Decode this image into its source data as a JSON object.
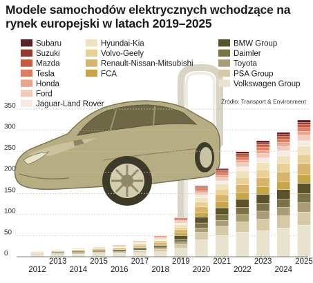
{
  "chart_data": {
    "type": "bar",
    "stacked": true,
    "title": "Modele samochodów elektrycznych wchodzące na rynek europejski w latach 2019–2025",
    "source": "Źródło: Transport & Environment",
    "categories": [
      "2012",
      "2013",
      "2014",
      "2015",
      "2016",
      "2017",
      "2018",
      "2019",
      "2020",
      "2021",
      "2022",
      "2023",
      "2024",
      "2025"
    ],
    "ylim": [
      0,
      350
    ],
    "yticks": [
      0,
      50,
      100,
      150,
      200,
      250,
      300,
      350
    ],
    "grid": true,
    "legend_position": "top",
    "series": [
      {
        "name": "Volkswagen Group",
        "color": "#e9e2cf",
        "values": [
          4,
          5,
          6,
          7,
          8,
          10,
          12,
          20,
          40,
          50,
          58,
          62,
          68,
          75
        ]
      },
      {
        "name": "PSA Group",
        "color": "#d6c9a6",
        "values": [
          2,
          3,
          3,
          4,
          4,
          5,
          6,
          10,
          18,
          22,
          25,
          27,
          29,
          31
        ]
      },
      {
        "name": "Toyota",
        "color": "#a99c76",
        "values": [
          0,
          0,
          0,
          0,
          0,
          1,
          2,
          5,
          10,
          14,
          17,
          19,
          20,
          22
        ]
      },
      {
        "name": "Daimler",
        "color": "#7b7346",
        "values": [
          1,
          1,
          2,
          2,
          2,
          3,
          3,
          7,
          12,
          14,
          17,
          19,
          20,
          22
        ]
      },
      {
        "name": "BMW Group",
        "color": "#5a5228",
        "values": [
          1,
          2,
          2,
          2,
          3,
          3,
          4,
          8,
          14,
          16,
          19,
          21,
          22,
          24
        ]
      },
      {
        "name": "FCA",
        "color": "#c8a545",
        "values": [
          0,
          0,
          0,
          0,
          0,
          1,
          2,
          6,
          10,
          14,
          16,
          18,
          19,
          21
        ]
      },
      {
        "name": "Renault-Nissan-Mitsubishi",
        "color": "#d8b46a",
        "values": [
          2,
          2,
          3,
          3,
          3,
          4,
          5,
          8,
          14,
          16,
          19,
          21,
          23,
          25
        ]
      },
      {
        "name": "Volvo-Geely",
        "color": "#e7cf96",
        "values": [
          1,
          1,
          1,
          2,
          2,
          3,
          4,
          6,
          12,
          14,
          17,
          19,
          20,
          22
        ]
      },
      {
        "name": "Hyundai-Kia",
        "color": "#f0e2bd",
        "values": [
          0,
          0,
          1,
          1,
          1,
          2,
          3,
          6,
          10,
          12,
          15,
          17,
          18,
          20
        ]
      },
      {
        "name": "Jaguar-Land Rover",
        "color": "#f6ebe3",
        "values": [
          0,
          0,
          0,
          0,
          1,
          1,
          2,
          4,
          6,
          8,
          10,
          11,
          12,
          13
        ]
      },
      {
        "name": "Ford",
        "color": "#f2cbbb",
        "values": [
          0,
          0,
          0,
          1,
          1,
          1,
          2,
          4,
          6,
          8,
          10,
          11,
          12,
          13
        ]
      },
      {
        "name": "Honda",
        "color": "#eca48c",
        "values": [
          0,
          0,
          0,
          0,
          0,
          0,
          1,
          2,
          4,
          5,
          6,
          7,
          8,
          9
        ]
      },
      {
        "name": "Tesla",
        "color": "#e07c5f",
        "values": [
          1,
          1,
          1,
          1,
          2,
          2,
          3,
          4,
          5,
          6,
          7,
          8,
          8,
          9
        ]
      },
      {
        "name": "Mazda",
        "color": "#c75a3c",
        "values": [
          0,
          0,
          0,
          0,
          0,
          0,
          0,
          2,
          3,
          4,
          5,
          6,
          6,
          7
        ]
      },
      {
        "name": "Suzuki",
        "color": "#93392e",
        "values": [
          0,
          0,
          0,
          0,
          0,
          0,
          0,
          1,
          2,
          3,
          4,
          4,
          5,
          5
        ]
      },
      {
        "name": "Subaru",
        "color": "#5c2028",
        "values": [
          0,
          0,
          0,
          0,
          0,
          0,
          0,
          1,
          2,
          3,
          4,
          5,
          5,
          6
        ]
      }
    ],
    "legend_columns": [
      [
        "Subaru",
        "Suzuki",
        "Mazda",
        "Tesla",
        "Honda",
        "Ford",
        "Jaguar-Land Rover"
      ],
      [
        "Hyundai-Kia",
        "Volvo-Geely",
        "Renault-Nissan-Mitsubishi",
        "FCA"
      ],
      [
        "BMW Group",
        "Daimler",
        "Toyota",
        "PSA Group",
        "Volkswagen Group"
      ]
    ],
    "background_image": "electric-car-charging-illustration"
  }
}
